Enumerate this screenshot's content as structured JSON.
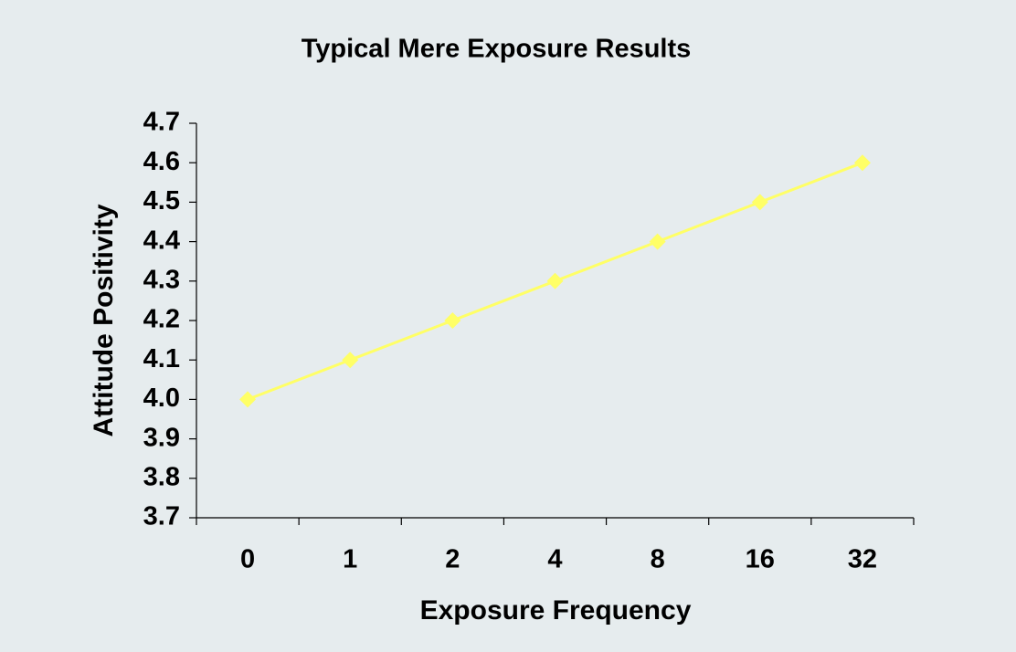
{
  "chart_data": {
    "type": "line",
    "title": "Typical Mere Exposure Results",
    "x_label": "Exposure Frequency",
    "y_label": "Attitude Positivity",
    "categories": [
      "0",
      "1",
      "2",
      "4",
      "8",
      "16",
      "32"
    ],
    "values": [
      4.0,
      4.1,
      4.2,
      4.3,
      4.4,
      4.5,
      4.6
    ],
    "color": "#ffff66",
    "ylim": [
      3.7,
      4.7
    ],
    "yticks": [
      3.7,
      3.8,
      3.9,
      {
        "value": 4.0,
        "label": "4.0"
      },
      4.1,
      4.2,
      4.3,
      4.4,
      4.5,
      4.6,
      4.7
    ],
    "grid": false
  }
}
